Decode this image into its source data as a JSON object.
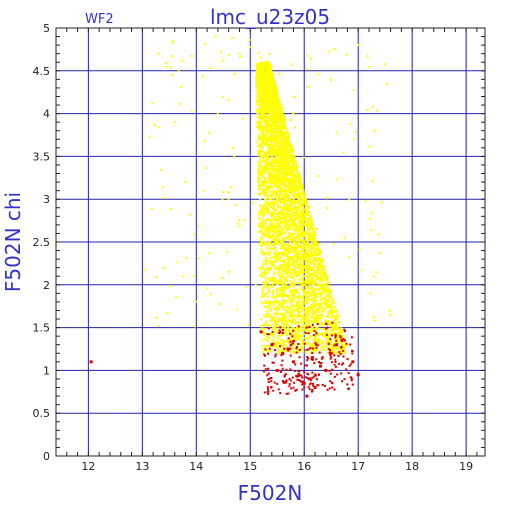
{
  "chart_data": {
    "type": "scatter",
    "title": "lmc_u23z05",
    "panel_label": "WF2",
    "xlabel": "F502N",
    "ylabel": "F502N chi",
    "xlim": [
      11.4,
      19.35
    ],
    "ylim": [
      0,
      5
    ],
    "xticks": [
      12,
      13,
      14,
      15,
      16,
      17,
      18,
      19
    ],
    "yticks": [
      0,
      0.5,
      1,
      1.5,
      2,
      2.5,
      3,
      3.5,
      4,
      4.5,
      5
    ],
    "ytick_labels": [
      "0",
      "0.5",
      "1",
      "1.5",
      "2",
      "2.5",
      "3",
      "3.5",
      "4",
      "4.5",
      "5"
    ],
    "grid": true,
    "series": [
      {
        "color": "#ffff00",
        "description": "dense wedge from F502N 15.1-16.9, chi 1.2-4.6, widening to lower chi at fainter magnitudes; sparse outliers 13-17.5",
        "points": [
          [
            15.3,
            4.6
          ],
          [
            15.4,
            4.3
          ],
          [
            15.5,
            4.0
          ],
          [
            15.6,
            3.7
          ],
          [
            15.7,
            3.4
          ],
          [
            15.8,
            3.1
          ],
          [
            15.9,
            2.8
          ],
          [
            16.0,
            2.5
          ],
          [
            16.1,
            2.3
          ],
          [
            16.2,
            2.1
          ],
          [
            16.3,
            1.9
          ],
          [
            16.4,
            1.8
          ],
          [
            16.5,
            1.7
          ],
          [
            16.6,
            1.6
          ],
          [
            15.1,
            2.0
          ],
          [
            15.2,
            2.5
          ],
          [
            15.3,
            3.0
          ],
          [
            15.4,
            3.5
          ],
          [
            15.5,
            2.0
          ],
          [
            15.6,
            1.8
          ],
          [
            15.7,
            1.6
          ],
          [
            15.8,
            1.5
          ],
          [
            15.9,
            1.4
          ],
          [
            16.0,
            1.5
          ],
          [
            16.7,
            1.4
          ],
          [
            16.8,
            1.3
          ],
          [
            13.3,
            4.7
          ],
          [
            13.6,
            3.9
          ],
          [
            14.4,
            4.0
          ],
          [
            14.8,
            4.7
          ],
          [
            17.0,
            4.8
          ],
          [
            17.3,
            3.8
          ],
          [
            13.8,
            3.2
          ],
          [
            14.6,
            3.0
          ]
        ]
      },
      {
        "color": "#dd0000",
        "description": "points with chi below ~1.5, F502N 15.2-17.0",
        "points": [
          [
            12.05,
            1.1
          ],
          [
            15.2,
            1.45
          ],
          [
            15.4,
            1.3
          ],
          [
            15.6,
            1.2
          ],
          [
            15.8,
            1.1
          ],
          [
            15.9,
            0.95
          ],
          [
            16.0,
            0.85
          ],
          [
            16.1,
            0.9
          ],
          [
            16.2,
            0.8
          ],
          [
            16.3,
            1.05
          ],
          [
            16.4,
            1.0
          ],
          [
            16.5,
            1.2
          ],
          [
            16.6,
            1.3
          ],
          [
            16.7,
            1.35
          ],
          [
            16.9,
            1.1
          ],
          [
            17.0,
            0.95
          ],
          [
            15.5,
            1.0
          ],
          [
            15.7,
            1.25
          ],
          [
            16.05,
            0.7
          ],
          [
            16.15,
            1.15
          ]
        ]
      }
    ]
  }
}
